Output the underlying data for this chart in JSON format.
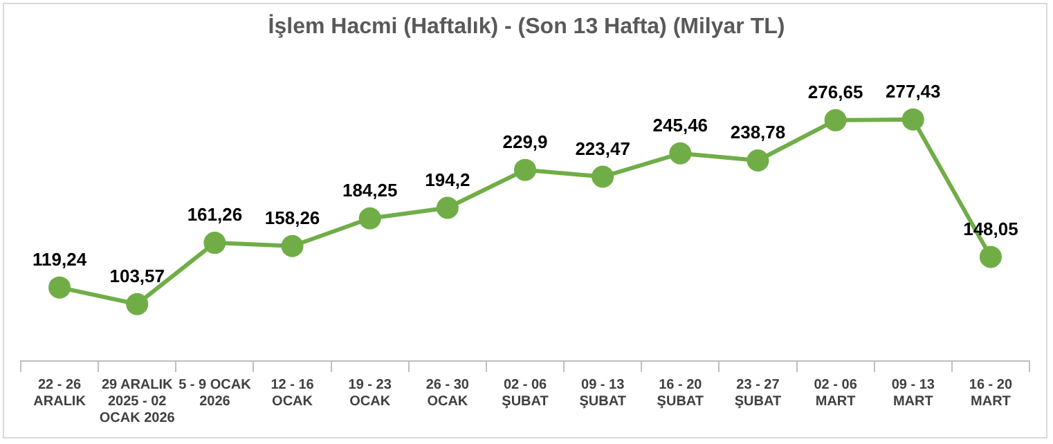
{
  "chart_data": {
    "type": "line",
    "title": "İşlem Hacmi (Haftalık) - (Son 13 Hafta) (Milyar TL)",
    "categories": [
      "22 - 26\nARALIK",
      "29 ARALIK\n2025 - 02\nOCAK 2026",
      "5 - 9 OCAK\n2026",
      "12 - 16\nOCAK",
      "19 - 23\nOCAK",
      "26 - 30\nOCAK",
      "02 - 06\nŞUBAT",
      "09 - 13\nŞUBAT",
      "16 - 20\nŞUBAT",
      "23 - 27\nŞUBAT",
      "02 - 06\nMART",
      "09 - 13\nMART",
      "16 - 20\nMART"
    ],
    "values": [
      119.24,
      103.57,
      161.26,
      158.26,
      184.25,
      194.2,
      229.9,
      223.47,
      245.46,
      238.78,
      276.65,
      277.43,
      148.05
    ],
    "value_labels": [
      "119,24",
      "103,57",
      "161,26",
      "158,26",
      "184,25",
      "194,2",
      "229,9",
      "223,47",
      "245,46",
      "238,78",
      "276,65",
      "277,43",
      "148,05"
    ],
    "color": "#70ad47",
    "marker": "circle",
    "line_style": "solid",
    "grid": false,
    "legend": false,
    "tick_labels": "x"
  }
}
